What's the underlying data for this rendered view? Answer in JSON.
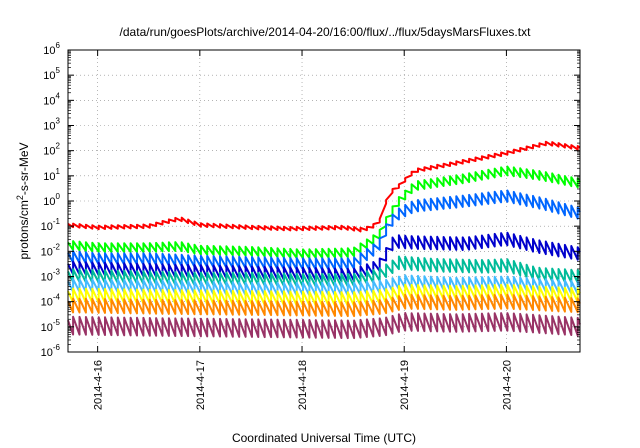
{
  "chart_data": {
    "type": "line",
    "title": "/data/run/goesPlots/archive/2014-04-20/16:00/flux/../flux/5daysMarsFluxes.txt",
    "xlabel": "Coordinated Universal Time (UTC)",
    "ylabel": "protons/cm²-s-sr-MeV",
    "ylabel_parts": {
      "prefix": "protons/cm",
      "sup": "2",
      "suffix": "-s-sr-MeV"
    },
    "y_scale": "log",
    "ylim": [
      1e-06,
      1000000.0
    ],
    "y_tick_base": "10",
    "y_ticks": [
      {
        "value": 1e-06,
        "exp": "-6"
      },
      {
        "value": 1e-05,
        "exp": "-5"
      },
      {
        "value": 0.0001,
        "exp": "-4"
      },
      {
        "value": 0.001,
        "exp": "-3"
      },
      {
        "value": 0.01,
        "exp": "-2"
      },
      {
        "value": 0.1,
        "exp": "-1"
      },
      {
        "value": 1,
        "exp": "0"
      },
      {
        "value": 10,
        "exp": "1"
      },
      {
        "value": 100,
        "exp": "2"
      },
      {
        "value": 1000,
        "exp": "3"
      },
      {
        "value": 10000.0,
        "exp": "4"
      },
      {
        "value": 100000.0,
        "exp": "5"
      },
      {
        "value": 1000000.0,
        "exp": "6"
      }
    ],
    "x_unit": "days since 2014-4-15 00:00",
    "xlim": [
      0.71,
      5.72
    ],
    "x_ticks": [
      {
        "value": 1,
        "label": "2014-4-16"
      },
      {
        "value": 2,
        "label": "2014-4-17"
      },
      {
        "value": 3,
        "label": "2014-4-18"
      },
      {
        "value": 4,
        "label": "2014-4-19"
      },
      {
        "value": 5,
        "label": "2014-4-20"
      }
    ],
    "grid": true,
    "series_colors": [
      "#ff0000",
      "#00ff00",
      "#0066ff",
      "#0000cc",
      "#00bb99",
      "#44bbff",
      "#ffff00",
      "#ff8800",
      "#993366"
    ],
    "sawtooth": {
      "period_days": 0.0625,
      "phase": 0.01
    },
    "series": [
      {
        "color": "#ff0000",
        "envelope": [
          [
            0.71,
            -0.95
          ],
          [
            1.0,
            -1.05
          ],
          [
            1.5,
            -1.0
          ],
          [
            1.8,
            -0.7
          ],
          [
            2.0,
            -0.95
          ],
          [
            2.5,
            -1.05
          ],
          [
            2.9,
            -1.1
          ],
          [
            3.4,
            -1.05
          ],
          [
            3.6,
            -1.15
          ],
          [
            3.75,
            -0.9
          ],
          [
            3.85,
            0.3
          ],
          [
            3.95,
            0.6
          ],
          [
            4.1,
            1.2
          ],
          [
            4.5,
            1.5
          ],
          [
            5.0,
            1.9
          ],
          [
            5.4,
            2.3
          ],
          [
            5.72,
            2.1
          ]
        ],
        "amplitude": 0.14
      },
      {
        "color": "#00ff00",
        "envelope": [
          [
            0.71,
            -1.75
          ],
          [
            1.0,
            -1.85
          ],
          [
            1.5,
            -1.85
          ],
          [
            1.8,
            -1.8
          ],
          [
            2.0,
            -1.95
          ],
          [
            2.5,
            -2.0
          ],
          [
            3.0,
            -2.1
          ],
          [
            3.5,
            -2.05
          ],
          [
            3.75,
            -1.4
          ],
          [
            3.85,
            -0.6
          ],
          [
            3.95,
            0.0
          ],
          [
            4.1,
            0.6
          ],
          [
            4.6,
            0.9
          ],
          [
            5.0,
            1.2
          ],
          [
            5.35,
            1.0
          ],
          [
            5.72,
            0.7
          ]
        ],
        "amplitude": 0.35
      },
      {
        "color": "#0066ff",
        "envelope": [
          [
            0.71,
            -2.2
          ],
          [
            1.0,
            -2.3
          ],
          [
            1.5,
            -2.3
          ],
          [
            2.0,
            -2.4
          ],
          [
            2.5,
            -2.45
          ],
          [
            3.0,
            -2.5
          ],
          [
            3.5,
            -2.5
          ],
          [
            3.75,
            -1.8
          ],
          [
            3.85,
            -0.9
          ],
          [
            3.95,
            -0.5
          ],
          [
            4.1,
            -0.2
          ],
          [
            4.6,
            0.0
          ],
          [
            5.0,
            0.2
          ],
          [
            5.35,
            -0.1
          ],
          [
            5.72,
            -0.5
          ]
        ],
        "amplitude": 0.45
      },
      {
        "color": "#0000cc",
        "envelope": [
          [
            0.71,
            -2.65
          ],
          [
            1.0,
            -2.7
          ],
          [
            1.5,
            -2.75
          ],
          [
            2.0,
            -2.8
          ],
          [
            2.5,
            -2.85
          ],
          [
            3.0,
            -2.9
          ],
          [
            3.5,
            -2.95
          ],
          [
            3.75,
            -2.6
          ],
          [
            3.9,
            -1.6
          ],
          [
            4.1,
            -1.65
          ],
          [
            4.6,
            -1.7
          ],
          [
            5.0,
            -1.5
          ],
          [
            5.3,
            -1.8
          ],
          [
            5.72,
            -2.1
          ]
        ],
        "amplitude": 0.5
      },
      {
        "color": "#00bb99",
        "envelope": [
          [
            0.71,
            -2.95
          ],
          [
            1.0,
            -3.0
          ],
          [
            1.5,
            -3.05
          ],
          [
            2.0,
            -3.1
          ],
          [
            2.5,
            -3.1
          ],
          [
            3.0,
            -3.15
          ],
          [
            3.5,
            -3.15
          ],
          [
            3.75,
            -2.95
          ],
          [
            3.95,
            -2.45
          ],
          [
            4.3,
            -2.55
          ],
          [
            4.8,
            -2.6
          ],
          [
            5.0,
            -2.55
          ],
          [
            5.3,
            -2.9
          ],
          [
            5.72,
            -3.0
          ]
        ],
        "amplitude": 0.5
      },
      {
        "color": "#44bbff",
        "envelope": [
          [
            0.71,
            -3.35
          ],
          [
            1.5,
            -3.4
          ],
          [
            2.5,
            -3.5
          ],
          [
            3.5,
            -3.5
          ],
          [
            3.8,
            -3.4
          ],
          [
            4.0,
            -3.2
          ],
          [
            4.5,
            -3.3
          ],
          [
            5.0,
            -3.25
          ],
          [
            5.72,
            -3.45
          ]
        ],
        "amplitude": 0.5
      },
      {
        "color": "#ffff00",
        "envelope": [
          [
            0.71,
            -3.75
          ],
          [
            1.5,
            -3.8
          ],
          [
            2.5,
            -3.85
          ],
          [
            3.5,
            -3.9
          ],
          [
            3.8,
            -3.8
          ],
          [
            4.0,
            -3.6
          ],
          [
            4.5,
            -3.65
          ],
          [
            5.0,
            -3.6
          ],
          [
            5.72,
            -3.75
          ]
        ],
        "amplitude": 0.55
      },
      {
        "color": "#ff8800",
        "envelope": [
          [
            0.71,
            -4.15
          ],
          [
            1.5,
            -4.2
          ],
          [
            2.5,
            -4.25
          ],
          [
            3.5,
            -4.3
          ],
          [
            3.8,
            -4.2
          ],
          [
            4.0,
            -4.0
          ],
          [
            4.5,
            -4.05
          ],
          [
            5.0,
            -4.0
          ],
          [
            5.72,
            -4.15
          ]
        ],
        "amplitude": 0.55
      },
      {
        "color": "#993366",
        "envelope": [
          [
            0.71,
            -4.95
          ],
          [
            1.5,
            -5.0
          ],
          [
            2.5,
            -5.05
          ],
          [
            3.5,
            -5.1
          ],
          [
            3.8,
            -5.0
          ],
          [
            4.0,
            -4.8
          ],
          [
            4.5,
            -4.85
          ],
          [
            5.0,
            -4.8
          ],
          [
            5.72,
            -5.0
          ]
        ],
        "amplitude": 0.7
      }
    ]
  }
}
